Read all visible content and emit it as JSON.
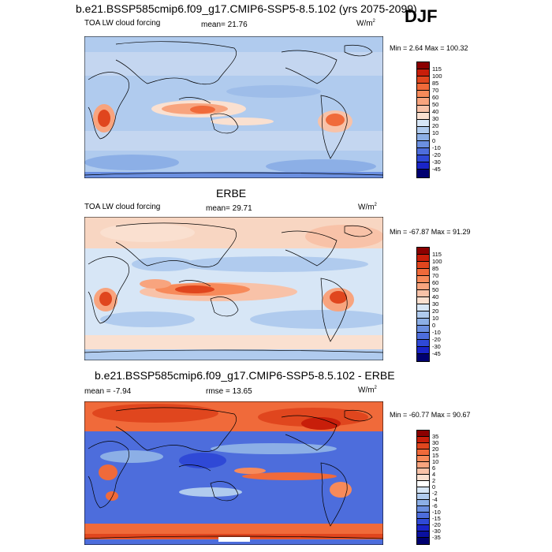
{
  "season": "DJF",
  "panels": [
    {
      "title": "b.e21.BSSP585cmip6.f09_g17.CMIP6-SSP5-8.5.102 (yrs 2075-2099)",
      "left_label": "TOA LW cloud forcing",
      "center_label": "mean=  21.76",
      "units": "W/m",
      "units_sup": "2",
      "minmax": "Min =   2.64 Max = 100.32",
      "colorbar_labels": [
        "115",
        "100",
        "85",
        "70",
        "60",
        "50",
        "40",
        "30",
        "20",
        "10",
        "0",
        "-10",
        "-20",
        "-30",
        "-45"
      ],
      "colorbar_colors": [
        "#8b0000",
        "#c81e0a",
        "#e0461e",
        "#f06a3a",
        "#f78a5a",
        "#f8a47e",
        "#f8c2a8",
        "#fae0d0",
        "#d7e6f6",
        "#b0cbee",
        "#8cafe6",
        "#6b8fe0",
        "#4d6ddc",
        "#2f49d6",
        "#1a24c8",
        "#000070"
      ]
    },
    {
      "title": "ERBE",
      "left_label": "TOA LW cloud forcing",
      "center_label": "mean=  29.71",
      "units": "W/m",
      "units_sup": "2",
      "minmax": "Min = -67.87 Max =  91.29",
      "colorbar_labels": [
        "115",
        "100",
        "85",
        "70",
        "60",
        "50",
        "40",
        "30",
        "20",
        "10",
        "0",
        "-10",
        "-20",
        "-30",
        "-45"
      ],
      "colorbar_colors": [
        "#8b0000",
        "#c81e0a",
        "#e0461e",
        "#f06a3a",
        "#f78a5a",
        "#f8a47e",
        "#f8c2a8",
        "#fae0d0",
        "#d7e6f6",
        "#b0cbee",
        "#8cafe6",
        "#6b8fe0",
        "#4d6ddc",
        "#2f49d6",
        "#1a24c8",
        "#000070"
      ]
    },
    {
      "title": "b.e21.BSSP585cmip6.f09_g17.CMIP6-SSP5-8.5.102 - ERBE",
      "left_label": "mean =  -7.94",
      "center_label": "rmse =  13.65",
      "units": "W/m",
      "units_sup": "2",
      "minmax": "Min = -60.77 Max =  90.67",
      "colorbar_labels": [
        "35",
        "30",
        "20",
        "15",
        "10",
        "6",
        "4",
        "2",
        "0",
        "-2",
        "-4",
        "-6",
        "-10",
        "-15",
        "-20",
        "-30",
        "-35"
      ],
      "colorbar_colors": [
        "#8b0000",
        "#c81e0a",
        "#e0461e",
        "#f06a3a",
        "#f78a5a",
        "#f8a47e",
        "#f8c2a8",
        "#fae0d0",
        "#ffffff",
        "#d7e6f6",
        "#b0cbee",
        "#8cafe6",
        "#6b8fe0",
        "#4d6ddc",
        "#2f49d6",
        "#1a24c8",
        "#0a10a0",
        "#000070"
      ]
    }
  ]
}
